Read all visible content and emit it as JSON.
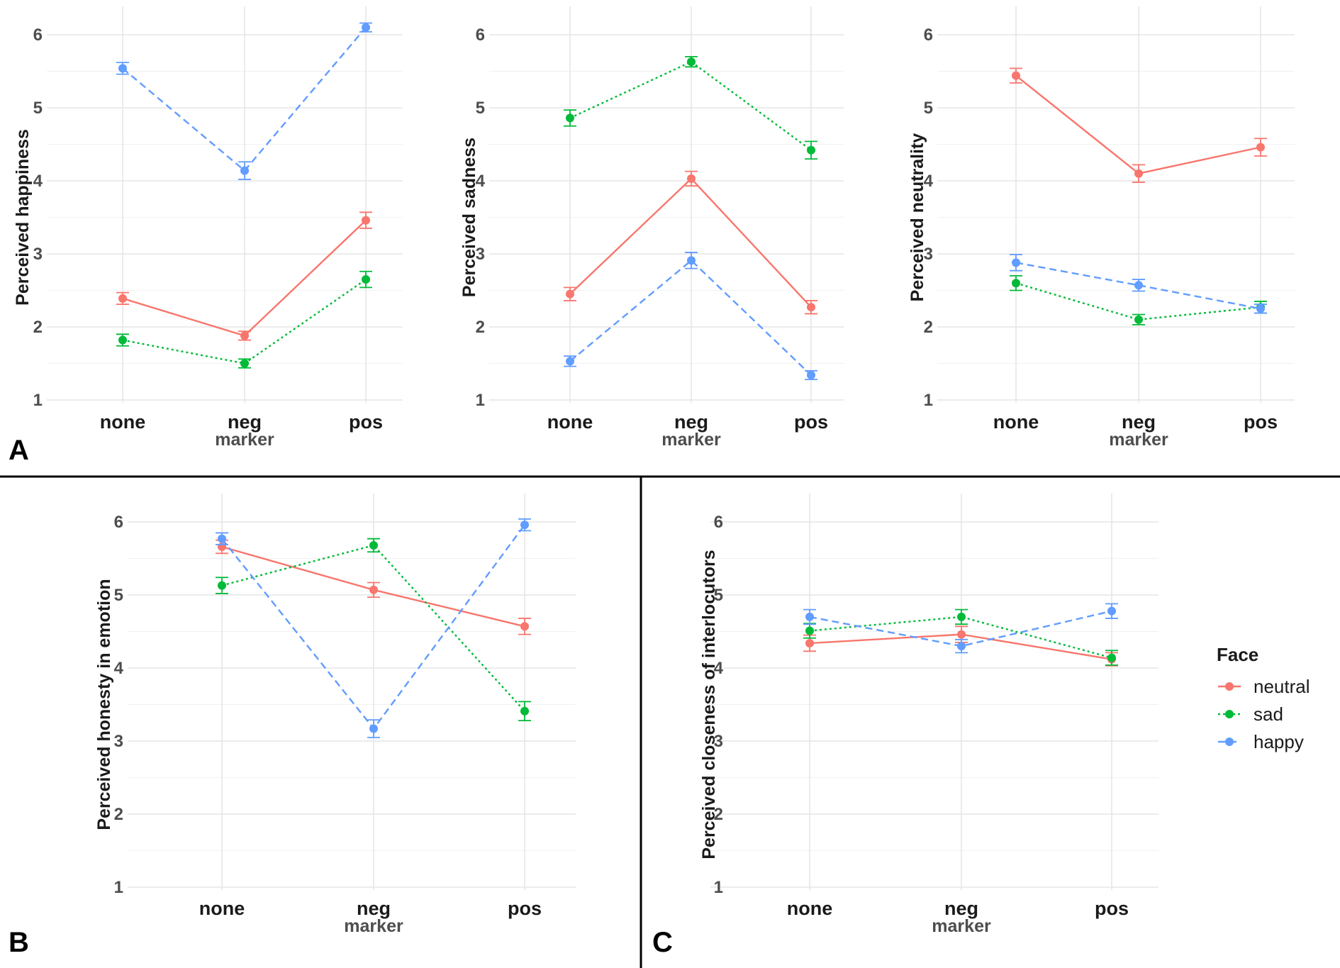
{
  "figure_labels": {
    "a": "A",
    "b": "B",
    "c": "C"
  },
  "legend": {
    "title": "Face",
    "items": [
      {
        "label": "neutral",
        "color": "#F8766D"
      },
      {
        "label": "sad",
        "color": "#00BA38"
      },
      {
        "label": "happy",
        "color": "#619CFF"
      }
    ]
  },
  "chart_data": [
    {
      "type": "line",
      "panel": "A",
      "title": "",
      "xlabel": "marker",
      "ylabel": "Perceived happiness",
      "categories": [
        "none",
        "neg",
        "pos"
      ],
      "ylim": [
        1,
        6
      ],
      "yticks": [
        1,
        2,
        3,
        4,
        5,
        6
      ],
      "grid": true,
      "series": [
        {
          "name": "neutral",
          "values": [
            2.39,
            1.88,
            3.46
          ],
          "errors": [
            0.08,
            0.06,
            0.11
          ]
        },
        {
          "name": "sad",
          "values": [
            1.82,
            1.5,
            2.65
          ],
          "errors": [
            0.08,
            0.06,
            0.11
          ]
        },
        {
          "name": "happy",
          "values": [
            5.54,
            4.14,
            6.1
          ],
          "errors": [
            0.08,
            0.12,
            0.06
          ]
        }
      ]
    },
    {
      "type": "line",
      "panel": "A",
      "title": "",
      "xlabel": "marker",
      "ylabel": "Perceived sadness",
      "categories": [
        "none",
        "neg",
        "pos"
      ],
      "ylim": [
        1,
        6
      ],
      "yticks": [
        1,
        2,
        3,
        4,
        5,
        6
      ],
      "grid": true,
      "series": [
        {
          "name": "neutral",
          "values": [
            2.45,
            4.03,
            2.27
          ],
          "errors": [
            0.09,
            0.1,
            0.09
          ]
        },
        {
          "name": "sad",
          "values": [
            4.86,
            5.63,
            4.42
          ],
          "errors": [
            0.11,
            0.07,
            0.12
          ]
        },
        {
          "name": "happy",
          "values": [
            1.53,
            2.91,
            1.34
          ],
          "errors": [
            0.07,
            0.11,
            0.06
          ]
        }
      ]
    },
    {
      "type": "line",
      "panel": "A",
      "title": "",
      "xlabel": "marker",
      "ylabel": "Perceived neutrality",
      "categories": [
        "none",
        "neg",
        "pos"
      ],
      "ylim": [
        1,
        6
      ],
      "yticks": [
        1,
        2,
        3,
        4,
        5,
        6
      ],
      "grid": true,
      "series": [
        {
          "name": "neutral",
          "values": [
            5.44,
            4.1,
            4.46
          ],
          "errors": [
            0.1,
            0.12,
            0.12
          ]
        },
        {
          "name": "sad",
          "values": [
            2.6,
            2.1,
            2.27
          ],
          "errors": [
            0.1,
            0.07,
            0.08
          ]
        },
        {
          "name": "happy",
          "values": [
            2.88,
            2.57,
            2.25
          ],
          "errors": [
            0.11,
            0.08,
            0.06
          ]
        }
      ]
    },
    {
      "type": "line",
      "panel": "B",
      "title": "",
      "xlabel": "marker",
      "ylabel": "Perceived honesty in emotion",
      "categories": [
        "none",
        "neg",
        "pos"
      ],
      "ylim": [
        1,
        6
      ],
      "yticks": [
        1,
        2,
        3,
        4,
        5,
        6
      ],
      "grid": true,
      "series": [
        {
          "name": "neutral",
          "values": [
            5.66,
            5.07,
            4.57
          ],
          "errors": [
            0.09,
            0.1,
            0.11
          ]
        },
        {
          "name": "sad",
          "values": [
            5.13,
            5.68,
            3.41
          ],
          "errors": [
            0.11,
            0.09,
            0.13
          ]
        },
        {
          "name": "happy",
          "values": [
            5.77,
            3.17,
            5.96
          ],
          "errors": [
            0.08,
            0.12,
            0.08
          ]
        }
      ]
    },
    {
      "type": "line",
      "panel": "C",
      "title": "",
      "xlabel": "marker",
      "ylabel": "Perceived closeness of interlocutors",
      "categories": [
        "none",
        "neg",
        "pos"
      ],
      "ylim": [
        1,
        6
      ],
      "yticks": [
        1,
        2,
        3,
        4,
        5,
        6
      ],
      "grid": true,
      "series": [
        {
          "name": "neutral",
          "values": [
            4.34,
            4.46,
            4.12
          ],
          "errors": [
            0.11,
            0.11,
            0.09
          ]
        },
        {
          "name": "sad",
          "values": [
            4.51,
            4.7,
            4.14
          ],
          "errors": [
            0.1,
            0.1,
            0.1
          ]
        },
        {
          "name": "happy",
          "values": [
            4.7,
            4.3,
            4.78
          ],
          "errors": [
            0.1,
            0.09,
            0.1
          ]
        }
      ]
    }
  ]
}
